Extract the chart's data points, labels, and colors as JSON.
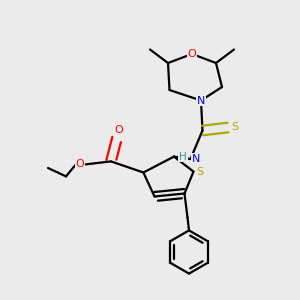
{
  "background_color": "#ebebeb",
  "atom_colors": {
    "C": "#000000",
    "N": "#0000ff",
    "O": "#ff0000",
    "S": "#aaaa00",
    "H": "#4a9090"
  },
  "bond_color": "#000000",
  "title": ""
}
